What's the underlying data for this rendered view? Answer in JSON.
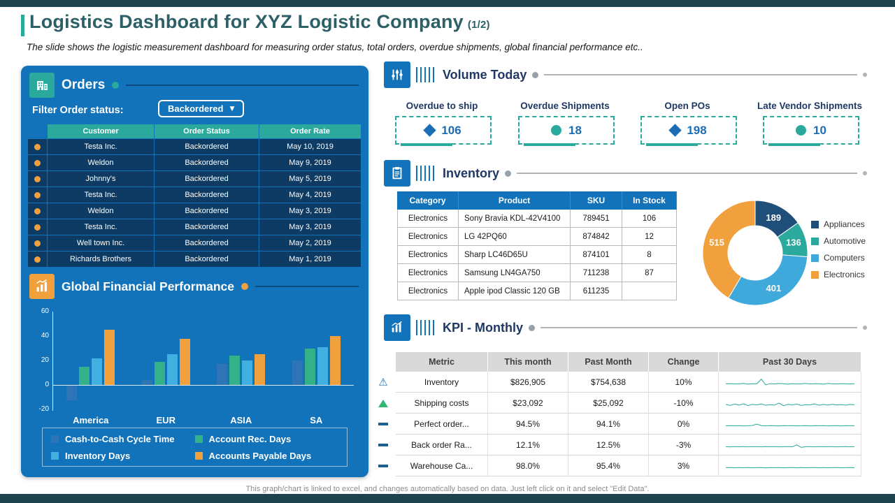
{
  "page": {
    "title": "Logistics Dashboard for XYZ Logistic Company",
    "title_suffix": "(1/2)",
    "subtitle": "The slide shows the logistic measurement dashboard for measuring order status, total orders, overdue shipments, global financial performance etc..",
    "footer": "This graph/chart is linked to excel, and changes automatically based on data. Just left click on it and select \"Edit Data\"."
  },
  "colors": {
    "panel_blue": "#1273ba",
    "teal": "#2aa99c",
    "row_navy": "#0d3b63",
    "orange": "#f0a03c",
    "title_teal": "#2c5f66",
    "section_navy": "#1f3864",
    "kpi_blue": "#1b6db5",
    "edge_bar": "#1c434e"
  },
  "orders": {
    "title": "Orders",
    "filter_label": "Filter Order status:",
    "filter_value": "Backordered",
    "filter_caret": "▼",
    "columns": [
      "Customer",
      "Order Status",
      "Order Rate"
    ],
    "rows": [
      [
        "Testa Inc.",
        "Backordered",
        "May 10, 2019"
      ],
      [
        "Weldon",
        "Backordered",
        "May 9, 2019"
      ],
      [
        "Johnny's",
        "Backordered",
        "May 5, 2019"
      ],
      [
        "Testa Inc.",
        "Backordered",
        "May 4, 2019"
      ],
      [
        "Weldon",
        "Backordered",
        "May 3, 2019"
      ],
      [
        "Testa Inc.",
        "Backordered",
        "May 3, 2019"
      ],
      [
        "Well town Inc.",
        "Backordered",
        "May 2, 2019"
      ],
      [
        "Richards Brothers",
        "Backordered",
        "May 1, 2019"
      ]
    ]
  },
  "financial": {
    "title": "Global Financial Performance"
  },
  "volume_today": {
    "title": "Volume Today",
    "kpis": [
      {
        "label": "Overdue to ship",
        "value": "106",
        "shape": "diamond"
      },
      {
        "label": "Overdue Shipments",
        "value": "18",
        "shape": "circle"
      },
      {
        "label": "Open POs",
        "value": "198",
        "shape": "diamond"
      },
      {
        "label": "Late Vendor Shipments",
        "value": "10",
        "shape": "circle"
      }
    ]
  },
  "inventory": {
    "title": "Inventory",
    "columns": [
      "Category",
      "Product",
      "SKU",
      "In Stock"
    ],
    "rows": [
      [
        "Electronics",
        "Sony Bravia KDL-42V4100",
        "789451",
        "106"
      ],
      [
        "Electronics",
        "LG 42PQ60",
        "874842",
        "12"
      ],
      [
        "Electronics",
        "Sharp LC46D65U",
        "874101",
        "8"
      ],
      [
        "Electronics",
        "Samsung LN4GA750",
        "711238",
        "87"
      ],
      [
        "Electronics",
        "Apple ipod Classic 120 GB",
        "611235",
        ""
      ]
    ]
  },
  "kpi_monthly": {
    "title": "KPI - Monthly",
    "columns": [
      "Metric",
      "This month",
      "Past Month",
      "Change",
      "Past 30 Days"
    ],
    "rows": [
      {
        "icon": "warning",
        "metric": "Inventory",
        "this_month": "$826,905",
        "past_month": "$754,638",
        "change": "10%"
      },
      {
        "icon": "up",
        "metric": "Shipping costs",
        "this_month": "$23,092",
        "past_month": "$25,092",
        "change": "-10%"
      },
      {
        "icon": "dash",
        "metric": "Perfect order...",
        "this_month": "94.5%",
        "past_month": "94.1%",
        "change": "0%"
      },
      {
        "icon": "dash",
        "metric": "Back order Ra...",
        "this_month": "12.1%",
        "past_month": "12.5%",
        "change": "-3%"
      },
      {
        "icon": "dash",
        "metric": "Warehouse Ca...",
        "this_month": "98.0%",
        "past_month": "95.4%",
        "change": "3%"
      }
    ]
  },
  "chart_data": [
    {
      "type": "bar",
      "title": "Global Financial Performance",
      "categories": [
        "America",
        "EUR",
        "ASIA",
        "SA"
      ],
      "series": [
        {
          "name": "Cash-to-Cash Cycle Time",
          "color": "#2e75b6",
          "values": [
            -12,
            4,
            17,
            20
          ]
        },
        {
          "name": "Account Rec. Days",
          "color": "#33b189",
          "values": [
            15,
            19,
            24,
            30
          ]
        },
        {
          "name": "Inventory Days",
          "color": "#3fb0e0",
          "values": [
            22,
            25,
            20,
            31
          ]
        },
        {
          "name": "Accounts Payable Days",
          "color": "#f0a03c",
          "values": [
            45,
            38,
            25,
            40
          ]
        }
      ],
      "ylim": [
        -20,
        60
      ],
      "yticks": [
        60,
        40,
        20,
        0,
        -20
      ],
      "grid": false,
      "legend_position": "bottom"
    },
    {
      "type": "pie",
      "donut": true,
      "title": "Inventory by Category",
      "labels": [
        "Appliances",
        "Automotive",
        "Computers",
        "Electronics"
      ],
      "values": [
        189,
        136,
        401,
        515
      ],
      "colors": [
        "#1f4e79",
        "#2aa99c",
        "#3fa9dc",
        "#f0a03c"
      ],
      "legend_position": "right"
    },
    {
      "type": "line",
      "title": "Past 30 Days",
      "color": "#2aa99c",
      "series": [
        {
          "name": "Inventory",
          "values": [
            5,
            5.1,
            4.9,
            5,
            5.2,
            4.8,
            5.1,
            5,
            7.8,
            4.4,
            5.1,
            4.9,
            5.2,
            5,
            4.8,
            5.1,
            4.9,
            5,
            5.2,
            4.9,
            5.1,
            5,
            4.8,
            5.2,
            5,
            4.9,
            5.1,
            5,
            4.9,
            5.1
          ]
        },
        {
          "name": "Shipping costs",
          "values": [
            5.2,
            4.6,
            5.4,
            4.8,
            5.6,
            4.5,
            5.2,
            4.9,
            5.5,
            4.7,
            5.1,
            4.8,
            6,
            4.4,
            5.3,
            4.9,
            5.4,
            4.6,
            5.1,
            4.9,
            5.5,
            4.7,
            5.2,
            4.8,
            5.3,
            4.9,
            5.1,
            4.8,
            5.2,
            5
          ]
        },
        {
          "name": "Perfect order...",
          "values": [
            5,
            5.05,
            4.95,
            5.1,
            4.9,
            5,
            5.15,
            6,
            5.1,
            4.95,
            5.05,
            5,
            4.9,
            5.1,
            5,
            5.05,
            4.95,
            5,
            5.1,
            4.9,
            5.05,
            5,
            5.1,
            4.95,
            5,
            5.05,
            4.9,
            5.1,
            5,
            5
          ]
        },
        {
          "name": "Back order Ra...",
          "values": [
            5,
            4.9,
            5.1,
            4.95,
            5.05,
            4.9,
            5.1,
            5,
            4.9,
            5.05,
            4.95,
            5.1,
            4.9,
            5,
            5.05,
            4.9,
            6.1,
            4.6,
            5,
            5.05,
            4.9,
            5.1,
            4.95,
            5,
            5.05,
            4.9,
            5,
            5.1,
            4.95,
            5
          ]
        },
        {
          "name": "Warehouse Ca...",
          "values": [
            5,
            5.1,
            4.9,
            5.05,
            4.95,
            5.1,
            4.9,
            5,
            5.1,
            4.85,
            5.05,
            4.95,
            5.1,
            4.9,
            5,
            5.05,
            4.9,
            5.1,
            4.95,
            5,
            5.1,
            4.9,
            5.05,
            4.95,
            5,
            5.1,
            4.9,
            5,
            5.05,
            4.95
          ]
        }
      ]
    }
  ]
}
